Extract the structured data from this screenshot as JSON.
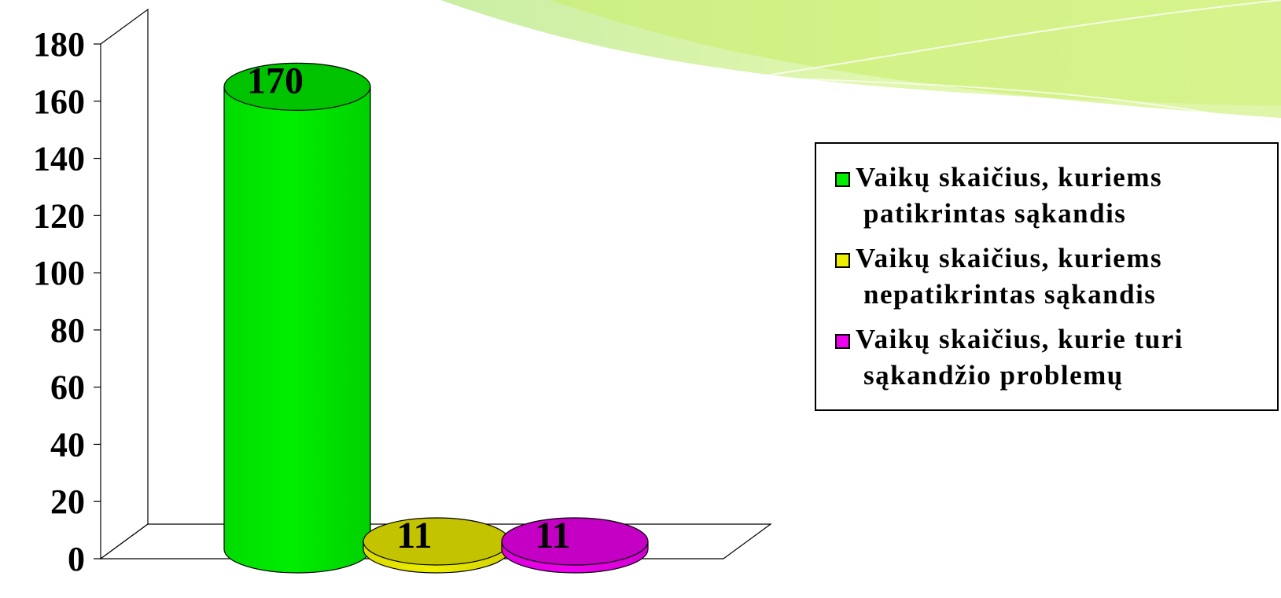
{
  "chart_data": {
    "type": "bar",
    "categories": [
      "Vaikų skaičius, kuriems patikrintas sąkandis",
      "Vaikų skaičius, kuriems nepatikrintas sąkandis",
      "Vaikų skaičius, kurie turi sąkandžio problemų"
    ],
    "values": [
      170,
      11,
      11
    ],
    "data_labels": [
      "170",
      "11",
      "11"
    ],
    "colors": [
      "#00ee00",
      "#eeee00",
      "#ee00ee"
    ],
    "ylim": [
      0,
      180
    ],
    "yticks": [
      "0",
      "20",
      "40",
      "60",
      "80",
      "100",
      "120",
      "140",
      "160",
      "180"
    ],
    "grid": false,
    "legend_position": "right",
    "title": "",
    "xlabel": "",
    "ylabel": ""
  },
  "legend": {
    "items": [
      {
        "line1": "Vaikų skaičius, kuriems",
        "line2": "patikrintas sąkandis",
        "color": "#00ee00"
      },
      {
        "line1": "Vaikų skaičius, kuriems",
        "line2": "nepatikrintas sąkandis",
        "color": "#eeee00"
      },
      {
        "line1": "Vaikų skaičius, kurie turi",
        "line2": "sąkandžio problemų",
        "color": "#ee00ee"
      }
    ]
  }
}
